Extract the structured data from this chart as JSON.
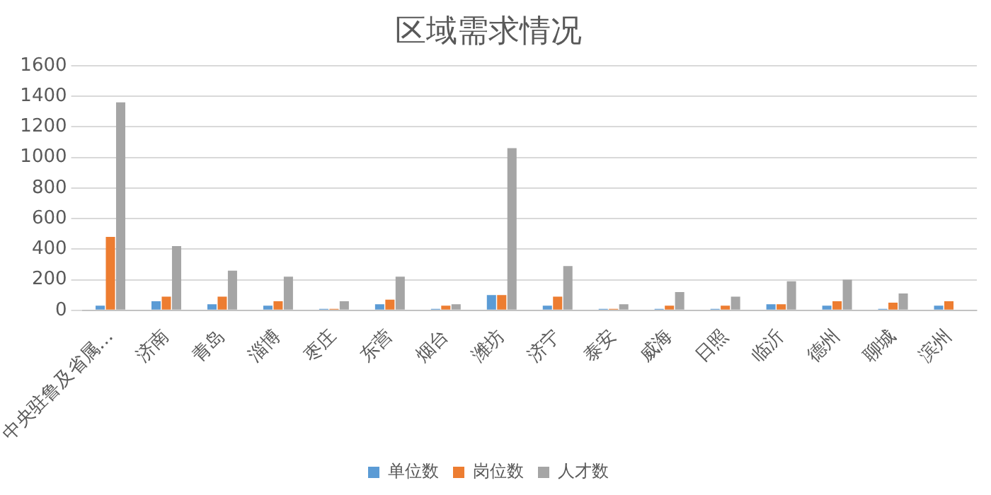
{
  "chart_data": {
    "type": "bar",
    "title": "区域需求情况",
    "categories": [
      "中央驻鲁及省属…",
      "济南",
      "青岛",
      "淄博",
      "枣庄",
      "东营",
      "烟台",
      "潍坊",
      "济宁",
      "泰安",
      "威海",
      "日照",
      "临沂",
      "德州",
      "聊城",
      "滨州"
    ],
    "series": [
      {
        "name": "单位数",
        "color": "#5b9bd5",
        "values": [
          30,
          60,
          40,
          30,
          10,
          40,
          10,
          100,
          30,
          10,
          10,
          10,
          40,
          30,
          10,
          30
        ]
      },
      {
        "name": "岗位数",
        "color": "#ed7d31",
        "values": [
          480,
          90,
          90,
          60,
          10,
          70,
          30,
          100,
          90,
          10,
          30,
          30,
          40,
          60,
          50,
          60
        ]
      },
      {
        "name": "人才数",
        "color": "#a5a5a5",
        "values": [
          1360,
          420,
          260,
          220,
          60,
          220,
          40,
          1060,
          290,
          40,
          120,
          90,
          190,
          200,
          110,
          null
        ]
      }
    ],
    "ylim": [
      0,
      1600
    ],
    "yticks": [
      0,
      200,
      400,
      600,
      800,
      1000,
      1200,
      1400,
      1600
    ],
    "grid": "y",
    "legend": "bottom"
  }
}
